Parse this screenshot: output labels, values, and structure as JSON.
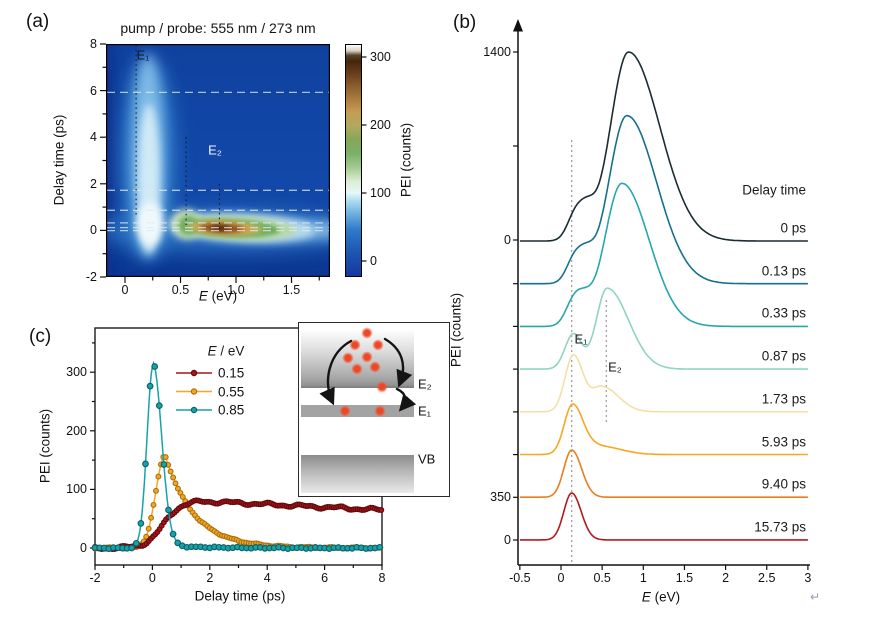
{
  "misc": {
    "return_mark": "↵"
  },
  "chart_data": [
    {
      "panel": "(a)",
      "type": "heatmap",
      "title": "pump / probe: 555 nm / 273 nm",
      "xlabel": {
        "italic": "E",
        "rest": " (eV)"
      },
      "ylabel": "Delay time (ps)",
      "x_ticks": [
        "0",
        "0.5",
        "1.0",
        "1.5"
      ],
      "y_ticks": [
        "8",
        "6",
        "4",
        "2",
        "0",
        "-2"
      ],
      "x_range_eV": [
        -0.17,
        1.85
      ],
      "y_range_ps": [
        -2,
        8
      ],
      "colorbar": {
        "label": "PEI (counts)",
        "ticks": [
          "300",
          "200",
          "100",
          "0"
        ],
        "range_counts": [
          0,
          330
        ],
        "colormap": [
          [
            0,
            "#16399f"
          ],
          [
            0.1,
            "#1c55b2"
          ],
          [
            0.2,
            "#2f7ac9"
          ],
          [
            0.27,
            "#6fb0de"
          ],
          [
            0.32,
            "#a6d8ee"
          ],
          [
            0.36,
            "#e8f6f9"
          ],
          [
            0.41,
            "#dcedd2"
          ],
          [
            0.47,
            "#a4ca91"
          ],
          [
            0.53,
            "#7ab168"
          ],
          [
            0.59,
            "#87a65a"
          ],
          [
            0.65,
            "#b1a95d"
          ],
          [
            0.71,
            "#c59c54"
          ],
          [
            0.77,
            "#a87a3c"
          ],
          [
            0.83,
            "#86592a"
          ],
          [
            0.89,
            "#60371a"
          ],
          [
            0.93,
            "#45250e"
          ],
          [
            0.955,
            "#55432b"
          ],
          [
            0.975,
            "#d8d1c3"
          ],
          [
            1,
            "#fdfdfa"
          ]
        ]
      },
      "annotations": [
        {
          "text": "E₁",
          "E_eV": 0.1
        },
        {
          "text": "E₂",
          "E_eV": 0.55
        }
      ],
      "features": {
        "hot_spot": {
          "E_eV": 0.85,
          "delay_ps": 0.05,
          "peak_counts": 330
        },
        "bright_band": {
          "E_eV": 0.2,
          "delay_range_ps": [
            0,
            8
          ],
          "counts": 120
        },
        "dotted_E_lines_eV": [
          0.1,
          0.55,
          0.85
        ],
        "dashed_delay_lines_ps": [
          0,
          0.13,
          0.33,
          0.87,
          1.73,
          5.93
        ]
      }
    },
    {
      "panel": "(b)",
      "type": "line",
      "xlabel": {
        "italic": "E",
        "rest": " (eV)"
      },
      "ylabel": "PEI (counts)",
      "x_ticks": [
        "-0.5",
        "0",
        "0.5",
        "1",
        "1.5",
        "2",
        "2.5",
        "3"
      ],
      "y_tick_labels": [
        "1400",
        "0",
        "350",
        "0"
      ],
      "offset_between_curves_counts": 350,
      "series_header": "Delay time",
      "dotted_E_lines_eV": [
        0.13,
        0.55
      ],
      "annotations": [
        {
          "text": "E₁"
        },
        {
          "text": "E₂"
        }
      ],
      "curves": [
        {
          "label": "0 ps",
          "color": "#1b2c33",
          "peak": {
            "E_eV": 0.82,
            "counts": 1400
          },
          "components": [
            {
              "mu": 0.82,
              "sl": 0.22,
              "sr": 0.38,
              "A": 1400
            },
            {
              "mu": 0.18,
              "s": 0.1,
              "A": 200
            },
            {
              "mu": 0.33,
              "s": 0.09,
              "A": 150
            }
          ]
        },
        {
          "label": "0.13 ps",
          "color": "#17708e",
          "peak": {
            "E_eV": 0.8,
            "counts": 1245
          },
          "components": [
            {
              "mu": 0.8,
              "sl": 0.22,
              "sr": 0.36,
              "A": 1245
            },
            {
              "mu": 0.17,
              "s": 0.1,
              "A": 190
            },
            {
              "mu": 0.32,
              "s": 0.09,
              "A": 130
            }
          ]
        },
        {
          "label": "0.33 ps",
          "color": "#28a6ad",
          "peak": {
            "E_eV": 0.74,
            "counts": 1060
          },
          "components": [
            {
              "mu": 0.74,
              "sl": 0.21,
              "sr": 0.33,
              "A": 1060
            },
            {
              "mu": 0.16,
              "s": 0.1,
              "A": 190
            },
            {
              "mu": 0.3,
              "s": 0.09,
              "A": 100
            }
          ]
        },
        {
          "label": "0.87 ps",
          "color": "#90d6b9",
          "peak": {
            "E_eV": 0.56,
            "counts": 600
          },
          "components": [
            {
              "mu": 0.56,
              "sl": 0.13,
              "sr": 0.26,
              "A": 600
            },
            {
              "mu": 0.15,
              "s": 0.1,
              "A": 260
            }
          ]
        },
        {
          "label": "1.73 ps",
          "color": "#f4dfa9",
          "peak": {
            "E_eV": 0.15,
            "counts": 420
          },
          "components": [
            {
              "mu": 0.15,
              "sl": 0.1,
              "sr": 0.12,
              "A": 420
            },
            {
              "mu": 0.5,
              "sl": 0.12,
              "sr": 0.2,
              "A": 185
            }
          ]
        },
        {
          "label": "5.93 ps",
          "color": "#f8a722",
          "peak": {
            "E_eV": 0.14,
            "counts": 370
          },
          "components": [
            {
              "mu": 0.14,
              "sl": 0.1,
              "sr": 0.13,
              "A": 370
            },
            {
              "mu": 0.48,
              "sl": 0.15,
              "sr": 0.25,
              "A": 60
            }
          ]
        },
        {
          "label": "9.40 ps",
          "color": "#e87e1e",
          "peak": {
            "E_eV": 0.13,
            "counts": 350
          },
          "components": [
            {
              "mu": 0.13,
              "sl": 0.095,
              "sr": 0.12,
              "A": 350
            }
          ]
        },
        {
          "label": "15.73 ps",
          "color": "#b01b1e",
          "peak": {
            "E_eV": 0.13,
            "counts": 348
          },
          "components": [
            {
              "mu": 0.13,
              "sl": 0.095,
              "sr": 0.115,
              "A": 348
            }
          ]
        }
      ]
    },
    {
      "panel": "(c)",
      "type": "scatter-line",
      "xlabel": "Delay time (ps)",
      "ylabel": "PEI (counts)",
      "x_ticks": [
        "-2",
        "0",
        "2",
        "4",
        "6",
        "8"
      ],
      "y_ticks": [
        "0",
        "100",
        "200",
        "300"
      ],
      "legend": {
        "title_italic": "E",
        "title_rest": " / eV"
      },
      "series": [
        {
          "label": "0.15",
          "color": "#a81418",
          "edge": "#5e0a0d",
          "marker_step_ps": 0.075,
          "marker_r": 2.4,
          "peak": {
            "t_ps": 1.8,
            "counts": 80
          },
          "value_at_8ps_counts": 64,
          "model": {
            "type": "sigmoid",
            "A": 80,
            "t0": 0.38,
            "w": 0.3,
            "ds": 1.7,
            "dr": 0.03,
            "noise": [
              2.0,
              5.1,
              1.2,
              12.3
            ]
          }
        },
        {
          "label": "0.55",
          "color": "#f5a623",
          "edge": "#a96f08",
          "marker_step_ps": 0.085,
          "marker_r": 2.4,
          "peak": {
            "t_ps": 0.45,
            "counts": 158
          },
          "model": {
            "type": "gauss-exp",
            "A": 158,
            "mu": 0.45,
            "sRise": 0.33,
            "tau": 1.0,
            "noise": [
              0.9,
              7.3,
              0.5,
              17.1
            ]
          }
        },
        {
          "label": "0.85",
          "color": "#17a2aa",
          "edge": "#0c5f65",
          "marker_step_ps": 0.16,
          "marker_r": 2.8,
          "peak": {
            "t_ps": 0.0,
            "counts": 310
          },
          "model": {
            "type": "peak",
            "A": 310,
            "mu": 0.02,
            "sRise": 0.21,
            "sFall": 0.3,
            "tailA": 6,
            "tailTau": 1.2,
            "noise": [
              0.8,
              9,
              0.5,
              23
            ]
          }
        }
      ],
      "inset": {
        "labels": [
          "E₂",
          "E₁",
          "VB"
        ],
        "electron_dots": [
          [
            68,
            10
          ],
          [
            56,
            22
          ],
          [
            79,
            22
          ],
          [
            49,
            35
          ],
          [
            68,
            34
          ],
          [
            58,
            46
          ],
          [
            76,
            44
          ],
          [
            83,
            64
          ],
          [
            46,
            88
          ],
          [
            81,
            88
          ]
        ]
      }
    }
  ]
}
